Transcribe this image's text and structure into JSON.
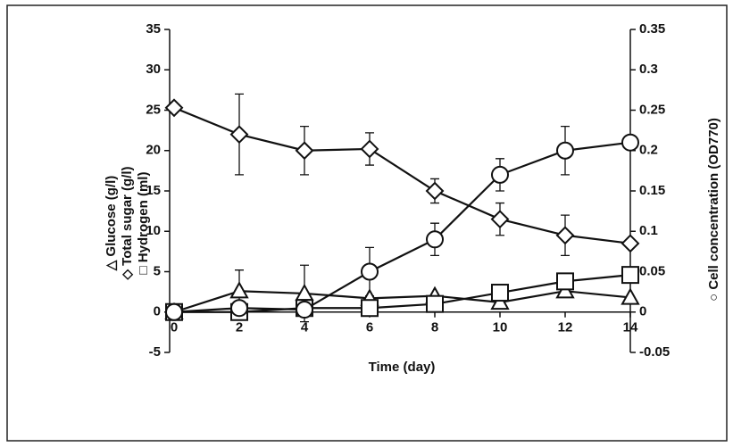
{
  "chart_data": {
    "type": "line",
    "x_label": "Time (day)",
    "x": [
      0,
      2,
      4,
      6,
      8,
      10,
      12,
      14
    ],
    "xlim": [
      0,
      14
    ],
    "xticks": [
      0,
      2,
      4,
      6,
      8,
      10,
      12,
      14
    ],
    "ylim": [
      -5,
      35
    ],
    "yticks": [
      -5,
      0,
      5,
      10,
      15,
      20,
      25,
      30,
      35
    ],
    "y2lim": [
      -0.05,
      0.35
    ],
    "y2ticks": [
      -0.05,
      0,
      0.05,
      0.1,
      0.15,
      0.2,
      0.25,
      0.3,
      0.35
    ],
    "series": [
      {
        "name": "△ Glucose (g/l)",
        "marker": "triangle",
        "color": "#111111",
        "values": [
          0,
          2.6,
          2.3,
          1.7,
          2.0,
          1.2,
          2.6,
          1.8
        ],
        "errors": [
          null,
          2.6,
          3.5,
          null,
          null,
          null,
          null,
          null
        ]
      },
      {
        "name": "◇ Total sugar (g/l)",
        "marker": "diamond",
        "color": "#111111",
        "values": [
          25.3,
          22,
          20,
          20.2,
          15,
          11.5,
          9.5,
          8.5
        ],
        "errors": [
          null,
          5,
          3,
          2,
          1.5,
          2,
          2.5,
          0.5
        ]
      },
      {
        "name": "□ Hydrogen (ml)",
        "marker": "square",
        "color": "#111111",
        "values": [
          0,
          0,
          0.5,
          0.5,
          1.0,
          2.4,
          3.8,
          4.6
        ],
        "errors": [
          null,
          null,
          null,
          null,
          null,
          null,
          null,
          null
        ]
      },
      {
        "name": "○ Cell concentration  (OD770)",
        "marker": "circle",
        "color": "#111111",
        "axis": "y2",
        "values": [
          0,
          0.005,
          0.003,
          0.05,
          0.09,
          0.17,
          0.2,
          0.21
        ],
        "errors": [
          null,
          null,
          null,
          0.03,
          0.02,
          0.02,
          0.03,
          null
        ]
      }
    ]
  }
}
